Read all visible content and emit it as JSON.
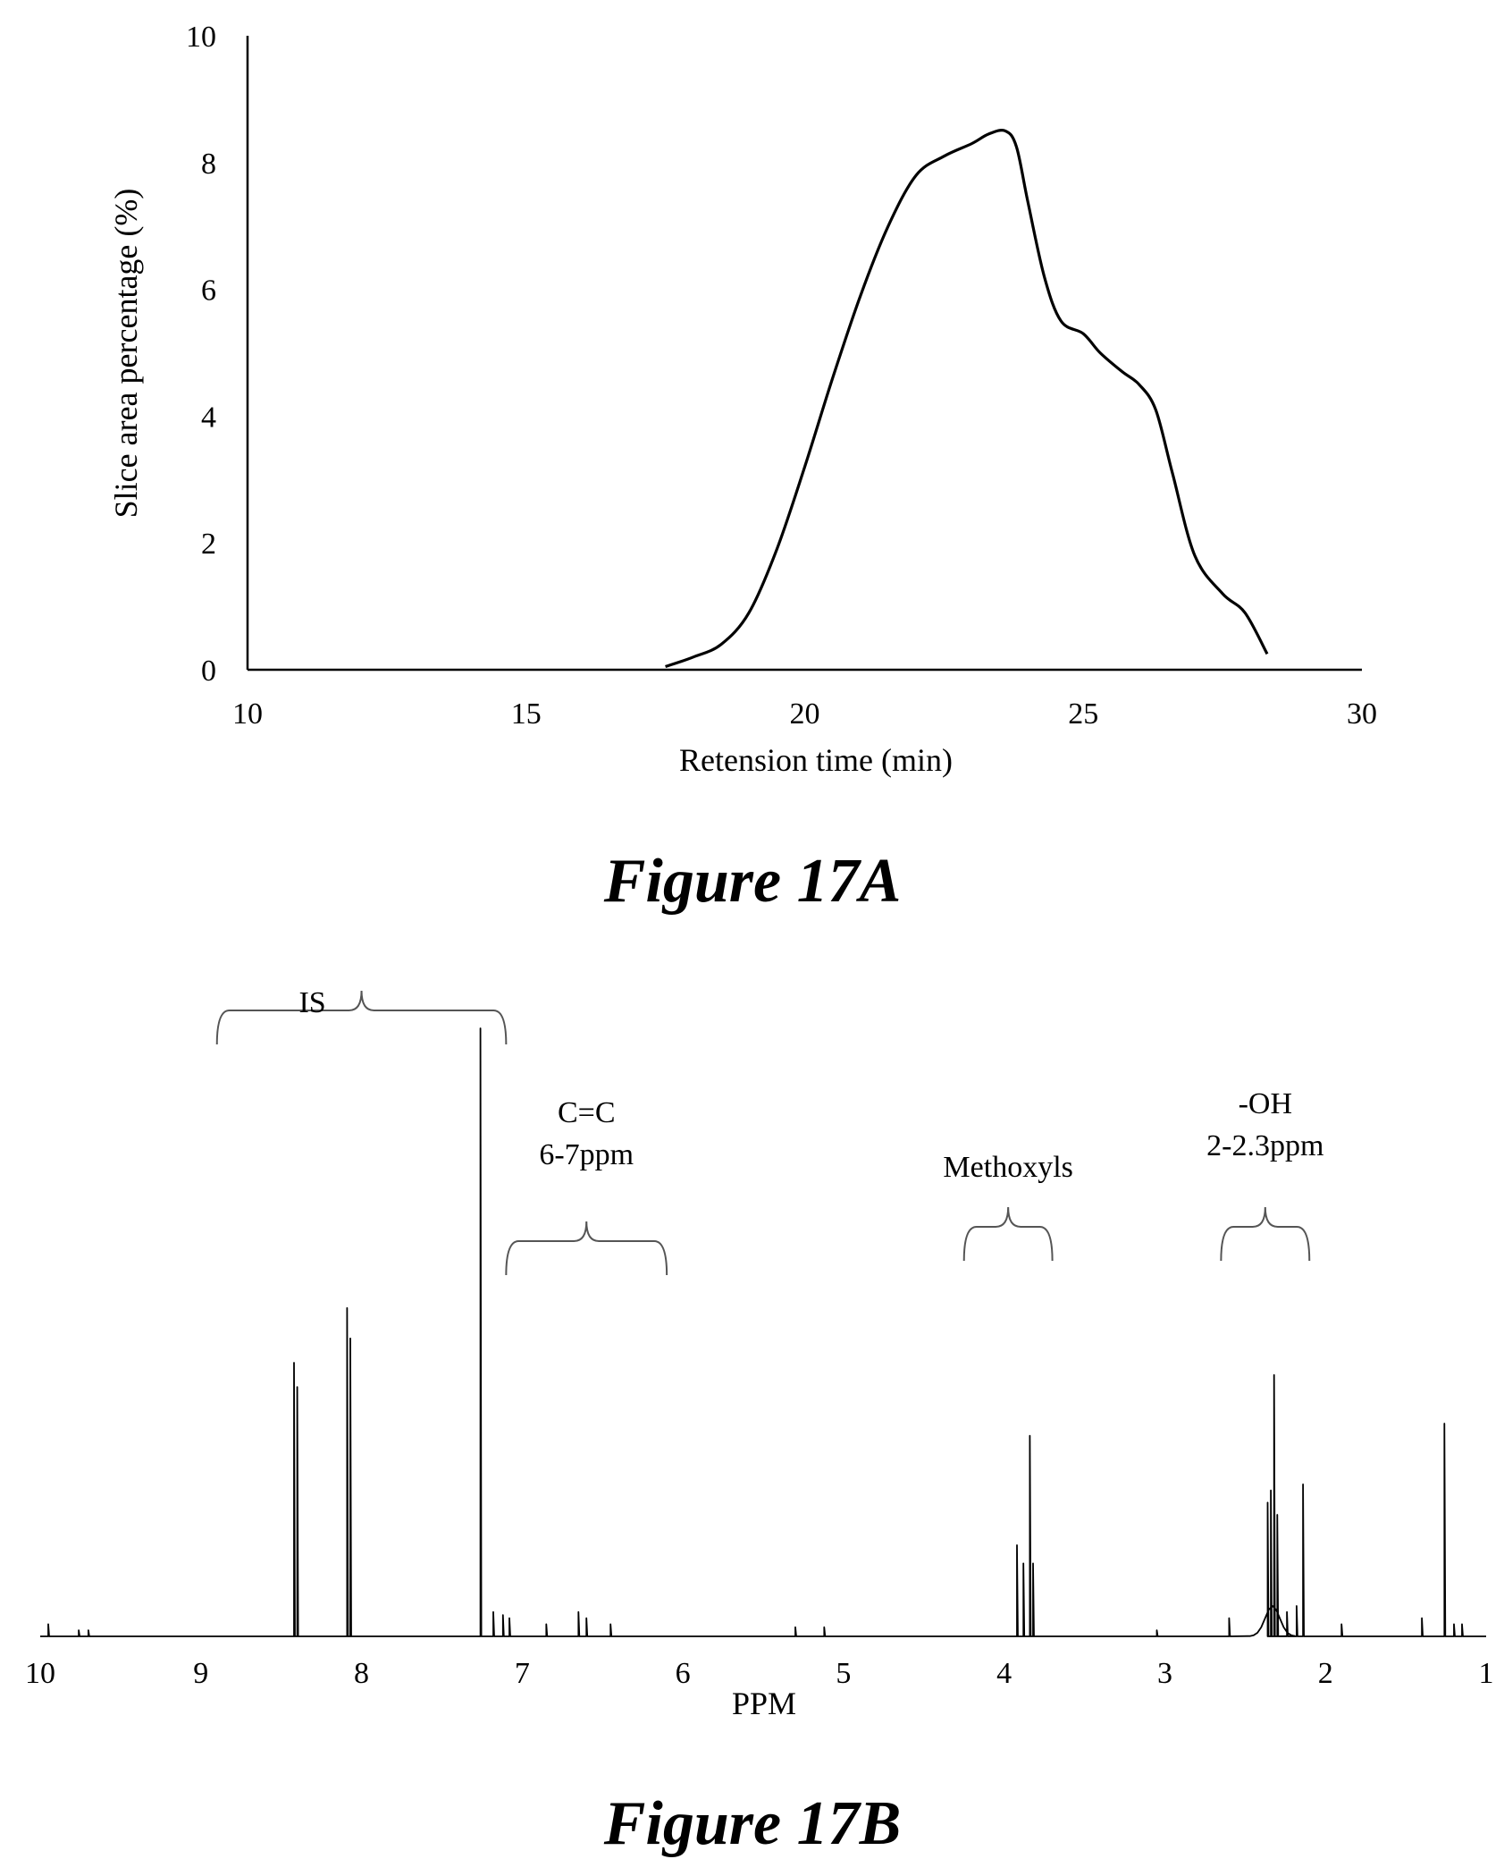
{
  "chart_data": [
    {
      "type": "line",
      "caption": "Figure 17A",
      "xlabel": "Retension time (min)",
      "ylabel": "Slice area percentage (%)",
      "xlim": [
        10,
        30
      ],
      "ylim": [
        0,
        10
      ],
      "xticks": [
        10,
        15,
        20,
        25,
        30
      ],
      "yticks": [
        0,
        2,
        4,
        6,
        8,
        10
      ],
      "grid": false,
      "series": [
        {
          "x": [
            17.5,
            18.0,
            18.5,
            19.0,
            19.5,
            20.0,
            20.5,
            21.0,
            21.5,
            22.0,
            22.5,
            23.0,
            23.3,
            23.6,
            23.8,
            24.0,
            24.3,
            24.6,
            25.0,
            25.3,
            25.7,
            26.0,
            26.3,
            26.6,
            27.0,
            27.5,
            27.9,
            28.3
          ],
          "y": [
            0.05,
            0.2,
            0.4,
            0.9,
            1.9,
            3.2,
            4.6,
            5.9,
            7.0,
            7.8,
            8.1,
            8.3,
            8.45,
            8.5,
            8.25,
            7.4,
            6.2,
            5.5,
            5.3,
            5.0,
            4.7,
            4.5,
            4.1,
            3.1,
            1.8,
            1.2,
            0.9,
            0.25
          ]
        }
      ]
    },
    {
      "type": "line",
      "caption": "Figure 17B",
      "xlabel": "PPM",
      "xlim": [
        10,
        1
      ],
      "xticks": [
        10,
        9,
        8,
        7,
        6,
        5,
        4,
        3,
        2,
        1
      ],
      "ylim": [
        0,
        1
      ],
      "grid": false,
      "annotations": [
        {
          "lines": [
            "IS"
          ],
          "range": [
            8.9,
            7.1
          ]
        },
        {
          "lines": [
            "C=C",
            "6-7ppm"
          ],
          "range": [
            7.1,
            6.1
          ]
        },
        {
          "lines": [
            "Methoxyls"
          ],
          "range": [
            4.25,
            3.7
          ]
        },
        {
          "lines": [
            "-OH",
            "2-2.3ppm"
          ],
          "range": [
            2.65,
            2.1
          ]
        }
      ],
      "peaks": [
        {
          "x": 9.95,
          "h": 0.02
        },
        {
          "x": 9.76,
          "h": 0.01
        },
        {
          "x": 9.7,
          "h": 0.01
        },
        {
          "x": 8.42,
          "h": 0.45
        },
        {
          "x": 8.4,
          "h": 0.41
        },
        {
          "x": 8.09,
          "h": 0.54
        },
        {
          "x": 8.07,
          "h": 0.49
        },
        {
          "x": 7.26,
          "h": 1.0
        },
        {
          "x": 7.18,
          "h": 0.04
        },
        {
          "x": 7.12,
          "h": 0.035
        },
        {
          "x": 7.08,
          "h": 0.03
        },
        {
          "x": 6.85,
          "h": 0.02
        },
        {
          "x": 6.65,
          "h": 0.04
        },
        {
          "x": 6.6,
          "h": 0.03
        },
        {
          "x": 6.45,
          "h": 0.02
        },
        {
          "x": 5.3,
          "h": 0.015
        },
        {
          "x": 5.12,
          "h": 0.015
        },
        {
          "x": 3.92,
          "h": 0.15
        },
        {
          "x": 3.88,
          "h": 0.12
        },
        {
          "x": 3.84,
          "h": 0.33
        },
        {
          "x": 3.82,
          "h": 0.12
        },
        {
          "x": 3.05,
          "h": 0.01
        },
        {
          "x": 2.6,
          "h": 0.03
        },
        {
          "x": 2.36,
          "h": 0.22
        },
        {
          "x": 2.34,
          "h": 0.24
        },
        {
          "x": 2.32,
          "h": 0.43
        },
        {
          "x": 2.3,
          "h": 0.2
        },
        {
          "x": 2.24,
          "h": 0.04
        },
        {
          "x": 2.18,
          "h": 0.05
        },
        {
          "x": 2.14,
          "h": 0.25
        },
        {
          "x": 1.9,
          "h": 0.02
        },
        {
          "x": 1.4,
          "h": 0.03
        },
        {
          "x": 1.26,
          "h": 0.35
        },
        {
          "x": 1.2,
          "h": 0.02
        },
        {
          "x": 1.15,
          "h": 0.02
        }
      ]
    }
  ]
}
